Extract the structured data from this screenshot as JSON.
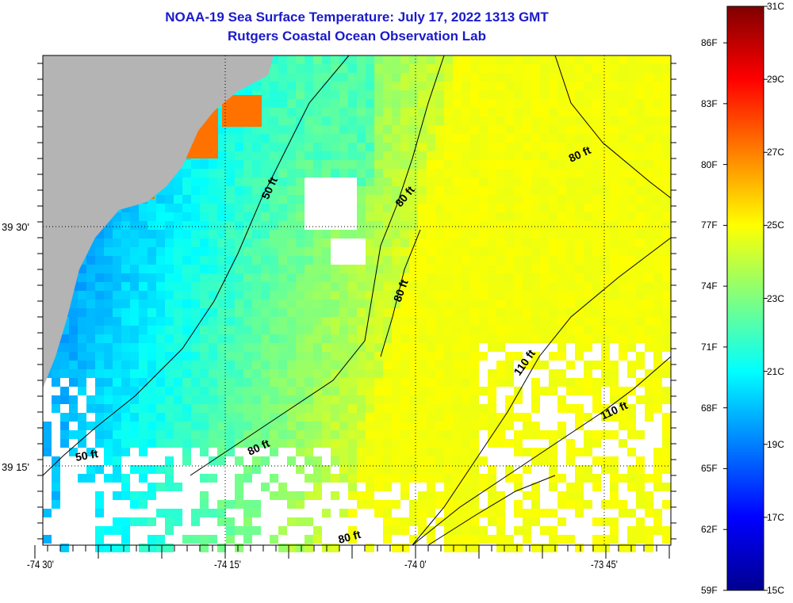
{
  "title": "NOAA-19 Sea Surface Temperature:  July 17, 2022 1313 GMT",
  "subtitle": "Rutgers Coastal Ocean Observation Lab",
  "x_ticks": [
    "-74 30'",
    "-74 15'",
    "-74 0'",
    "-73 45'"
  ],
  "y_ticks": [
    "39 30'",
    "39 15'"
  ],
  "contour_labels": [
    "50 ft",
    "50 ft",
    "80 ft",
    "80 ft",
    "80 ft",
    "80 ft",
    "80 ft",
    "110 ft",
    "110 ft"
  ],
  "colorbar": {
    "f_labels": [
      "86F",
      "83F",
      "80F",
      "77F",
      "74F",
      "71F",
      "68F",
      "65F",
      "62F",
      "59F"
    ],
    "c_labels": [
      "31C",
      "29C",
      "27C",
      "25C",
      "23C",
      "21C",
      "19C",
      "17C",
      "15C"
    ],
    "range_c": [
      15,
      31
    ]
  },
  "colors": {
    "land": "#b4b4b4",
    "title": "#1a1acc"
  }
}
